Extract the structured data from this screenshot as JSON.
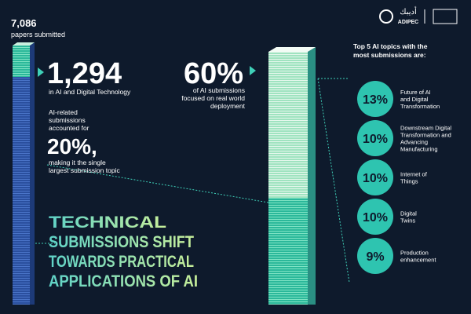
{
  "header": {
    "total": "7,086",
    "total_label": "papers submitted",
    "logo_arabic": "أديبك",
    "logo": "ADIPEC"
  },
  "ai_stat": {
    "value": "1,294",
    "label": "in AI and Digital Technology"
  },
  "share_stat": {
    "intro": [
      "AI-related",
      "submissions",
      "accounted for"
    ],
    "value": "20%,",
    "outro": [
      "making it the single",
      "largest submission topic"
    ]
  },
  "deploy_stat": {
    "value": "60%",
    "label": [
      "of AI submissions",
      "focused on real world",
      "deployment"
    ]
  },
  "title": [
    "TECHNICAL",
    "SUBMISSIONS SHIFT",
    "TOWARDS PRACTICAL",
    "APPLICATIONS OF AI"
  ],
  "topics": {
    "heading": [
      "Top 5 AI topics with the",
      "most submissions are:"
    ],
    "items": [
      {
        "value": "13%",
        "label": [
          "Future of AI",
          "and Digital",
          "Transformation"
        ]
      },
      {
        "value": "10%",
        "label": [
          "Downstream Digital",
          "Transformation and",
          "Advancing",
          "Manufacturing"
        ]
      },
      {
        "value": "10%",
        "label": [
          "Internet of",
          "Things"
        ]
      },
      {
        "value": "10%",
        "label": [
          "Digital",
          "Twins"
        ]
      },
      {
        "value": "9%",
        "label": [
          "Production",
          "enhancement"
        ]
      }
    ]
  }
}
